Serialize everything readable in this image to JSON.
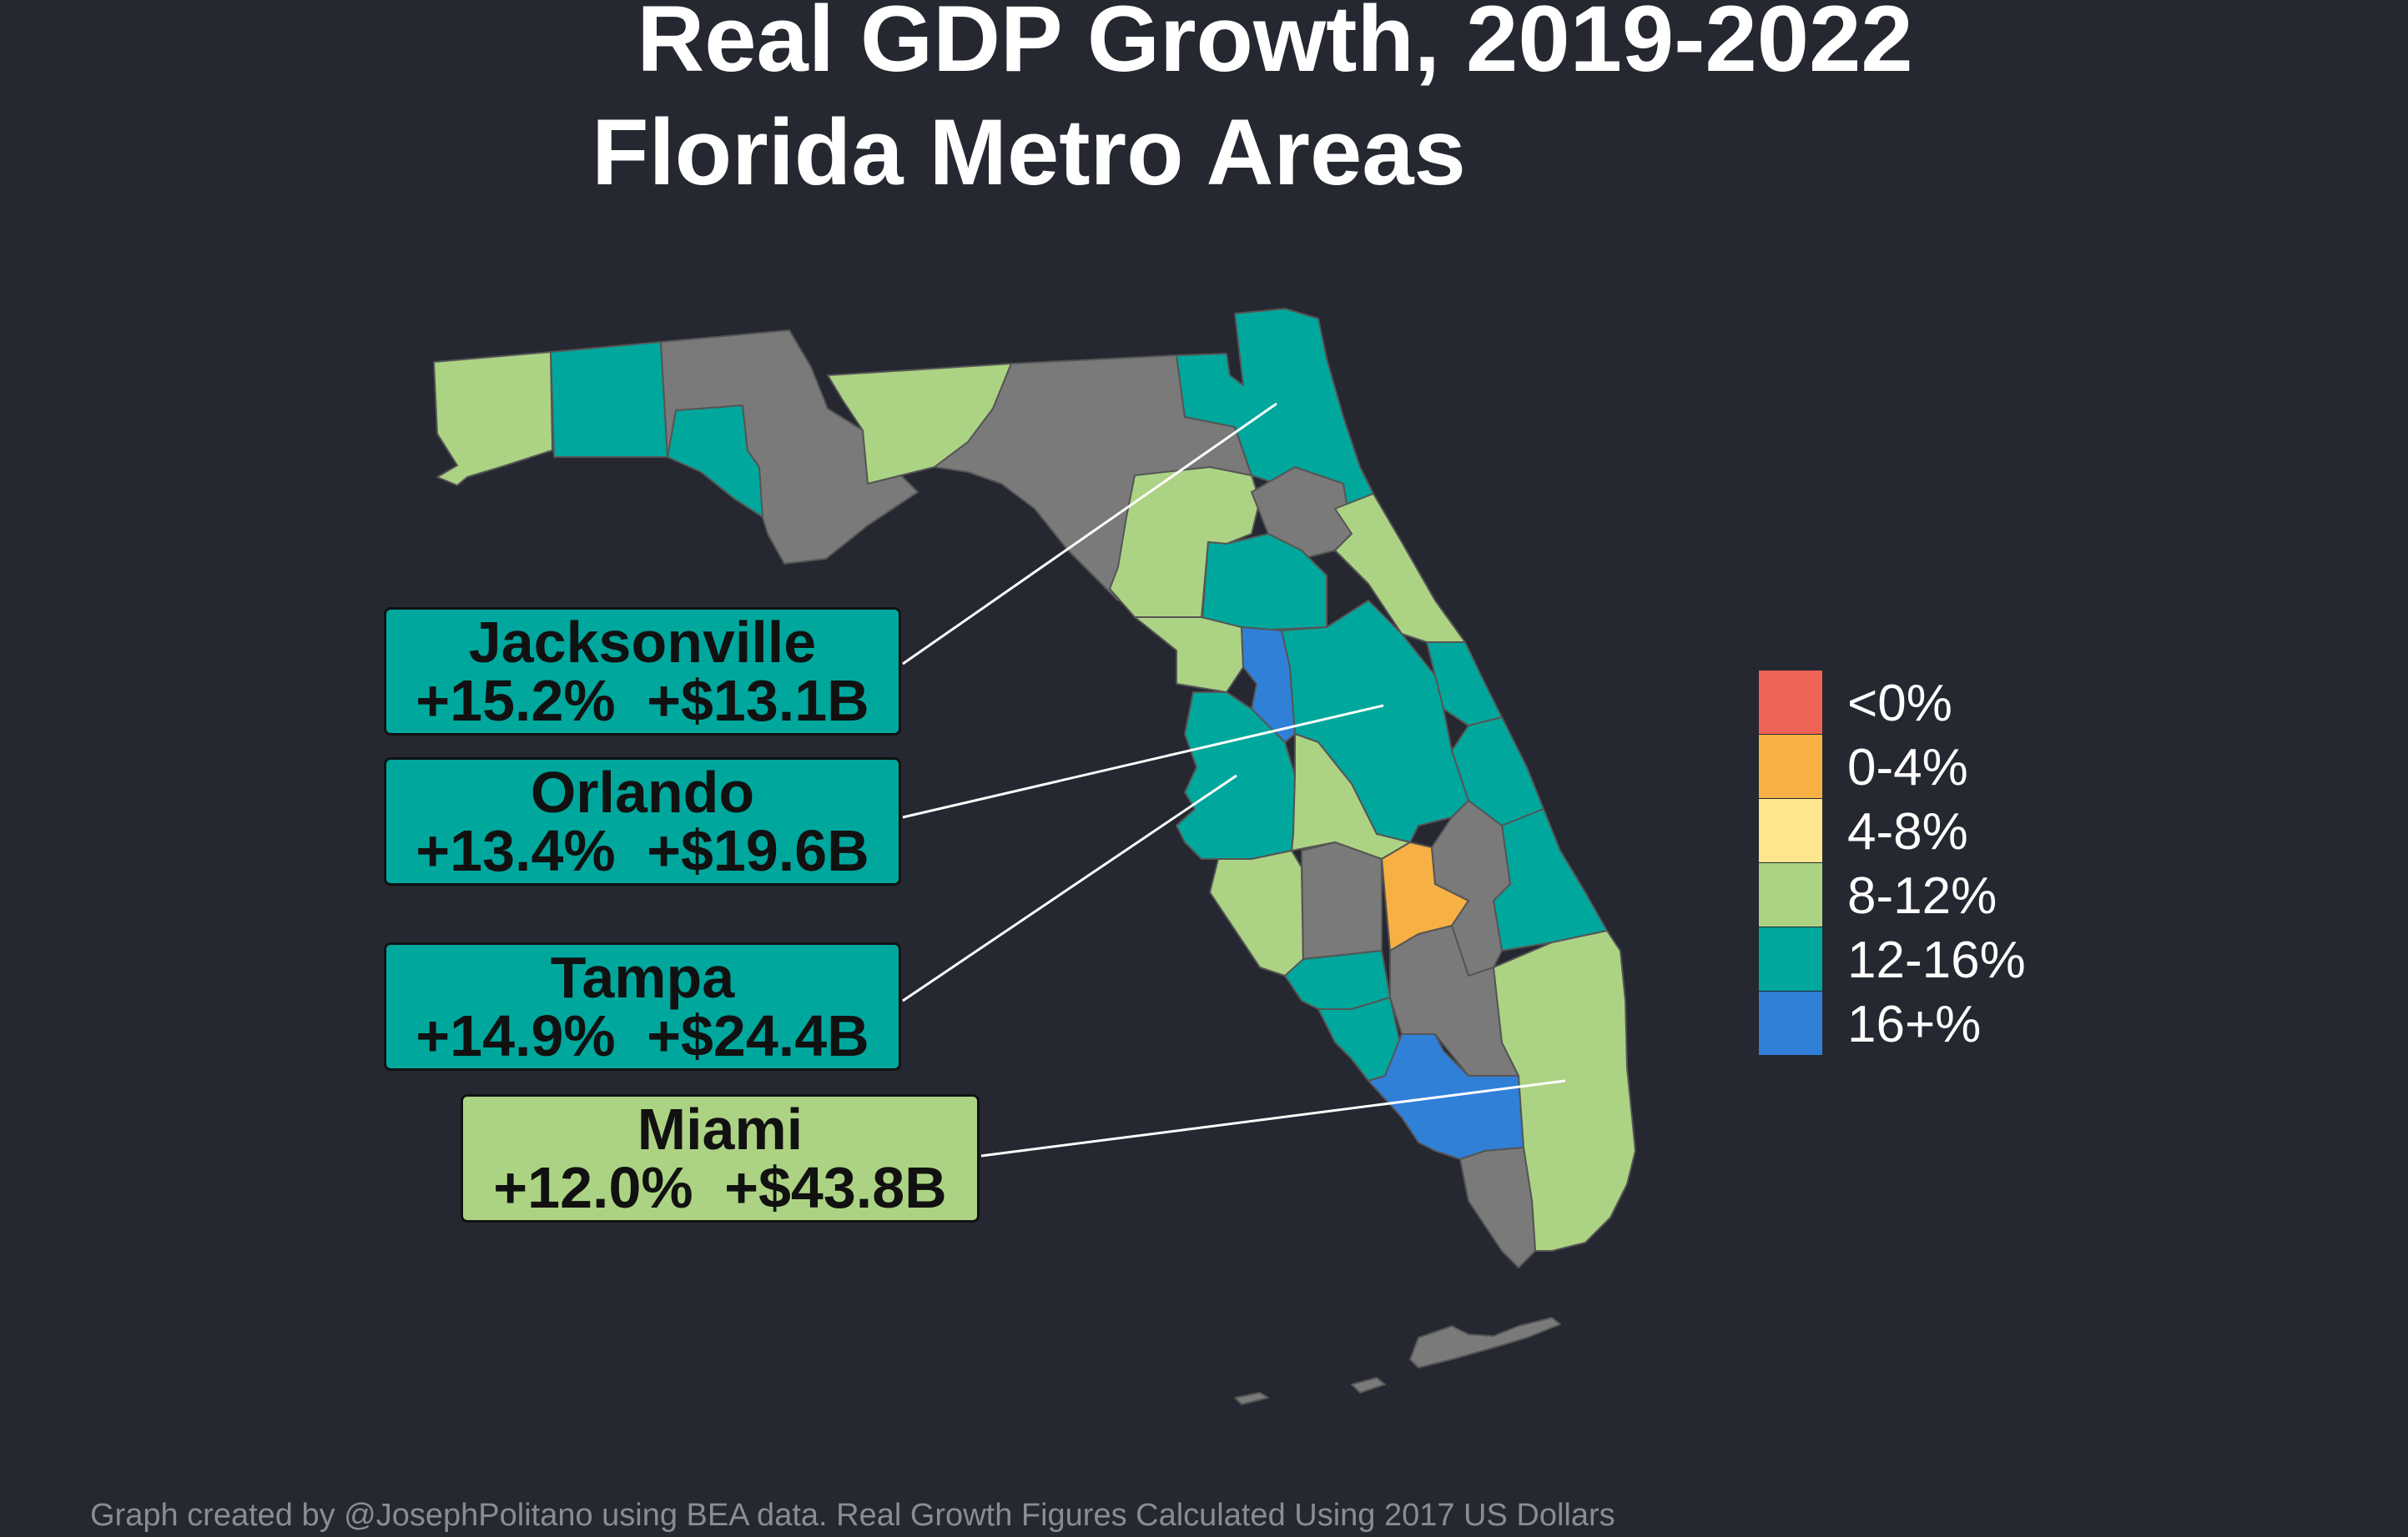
{
  "title": {
    "line1": "Real GDP Growth, 2019-2022",
    "line2": "Florida Metro Areas"
  },
  "colors": {
    "background": "#252830",
    "no_data": "#7a7a7a",
    "neg": "#ef6256",
    "c0_4": "#f7b043",
    "c4_8": "#fde68e",
    "c8_12": "#acd383",
    "c12_16": "#00a79d",
    "c16plus": "#3080d8",
    "leader": "#ffffff"
  },
  "legend": {
    "items": [
      {
        "label": "<0%",
        "color": "#ef6256"
      },
      {
        "label": "0-4%",
        "color": "#f7b043"
      },
      {
        "label": "4-8%",
        "color": "#fde68e"
      },
      {
        "label": "8-12%",
        "color": "#acd383"
      },
      {
        "label": "12-16%",
        "color": "#00a79d"
      },
      {
        "label": "16+%",
        "color": "#3080d8"
      }
    ]
  },
  "callouts": {
    "jacksonville": {
      "name": "Jacksonville",
      "stats": "+15.2% +$13.1B",
      "color": "#00a79d"
    },
    "orlando": {
      "name": "Orlando",
      "stats": "+13.4% +$19.6B",
      "color": "#00a79d"
    },
    "tampa": {
      "name": "Tampa",
      "stats": "+14.9% +$24.4B",
      "color": "#00a79d"
    },
    "miami": {
      "name": "Miami",
      "stats": "+12.0% +$43.8B",
      "color": "#acd383"
    }
  },
  "footer": "Graph created by @JosephPolitano using BEA data. Real Growth Figures Calculated Using 2017 US Dollars"
}
